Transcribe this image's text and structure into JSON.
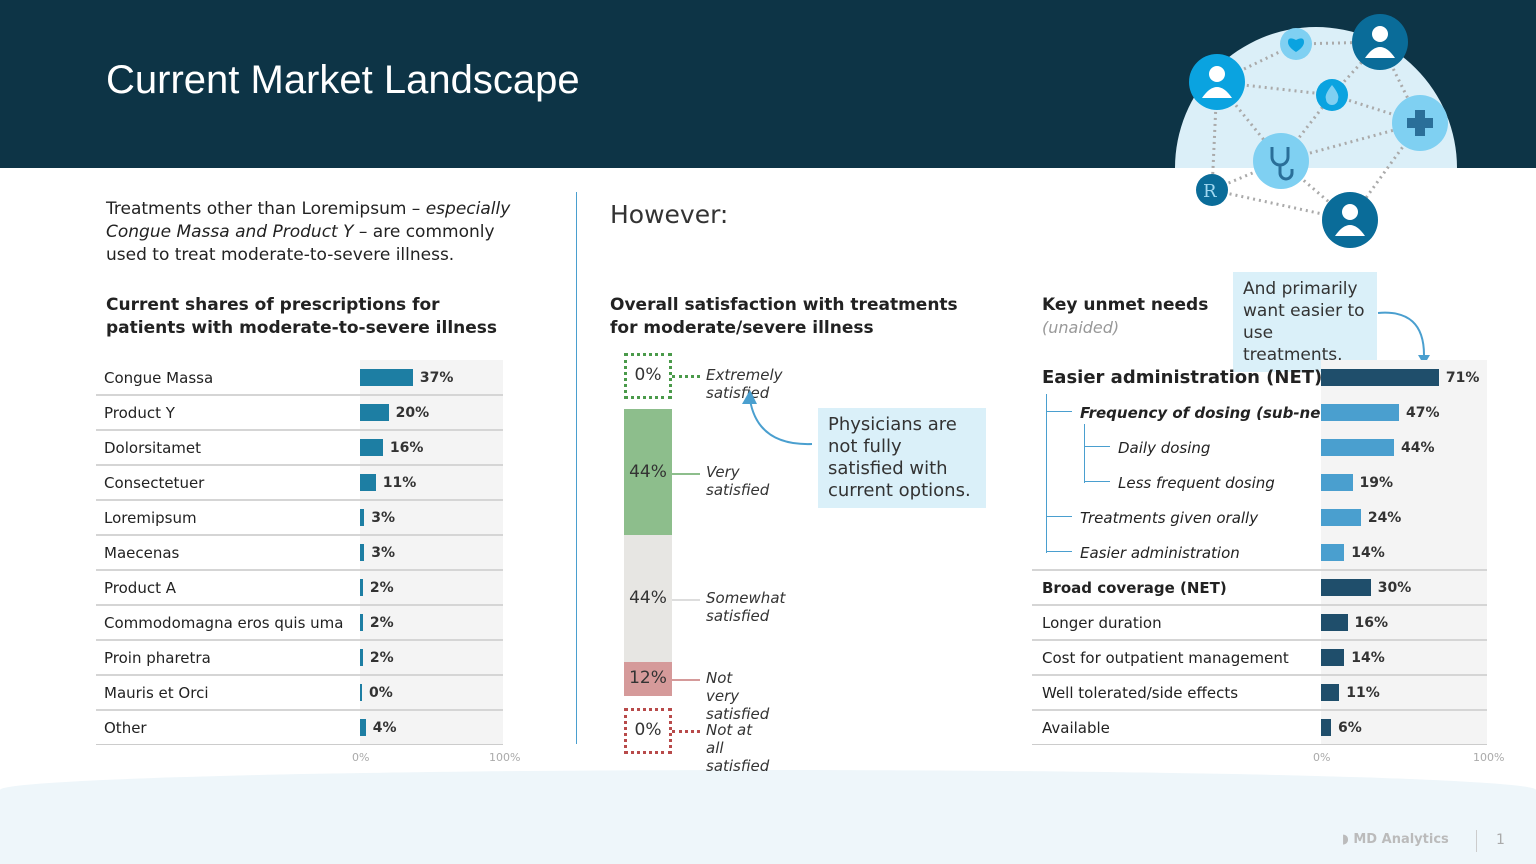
{
  "header": {
    "title": "Current Market Landscape"
  },
  "intro": {
    "text_a": "Treatments other than Loremipsum – ",
    "text_em": "especially Congue Massa and Product Y",
    "text_b": " – are commonly used to treat moderate-to-severe illness."
  },
  "however": "However:",
  "callouts": {
    "satisfaction": "Physicians are not fully satisfied with current options.",
    "unmet": "And primarily want easier to use treatments."
  },
  "footer": {
    "brand": "MD Analytics",
    "page": "1"
  },
  "colors": {
    "header": "#0d3446",
    "bar_left": "#1d7ea3",
    "bar_net": "#1f4e6b",
    "bar_sub": "#4a9fcf",
    "green": "#8dbe8c",
    "gray": "#e7e6e3",
    "red": "#d59a9a"
  },
  "chart_data": [
    {
      "type": "bar",
      "orientation": "horizontal",
      "title": "Current shares of prescriptions for patients with moderate-to-severe illness",
      "xlim": [
        0,
        100
      ],
      "ticks": [
        "0%",
        "100%"
      ],
      "categories": [
        "Congue Massa",
        "Product Y",
        "Dolorsitamet",
        "Consectetuer",
        "Loremipsum",
        "Maecenas",
        "Product A",
        "Commodomagna eros quis uma",
        "Proin pharetra",
        "Mauris et Orci",
        "Other"
      ],
      "values": [
        37,
        20,
        16,
        11,
        3,
        3,
        2,
        2,
        2,
        0,
        4
      ]
    },
    {
      "type": "bar",
      "orientation": "stacked-vertical",
      "title": "Overall satisfaction with treatments for moderate/severe illness",
      "categories": [
        "Extremely satisfied",
        "Very satisfied",
        "Somewhat satisfied",
        "Not very satisfied",
        "Not at all satisfied"
      ],
      "values": [
        0,
        44,
        44,
        12,
        0
      ]
    },
    {
      "type": "bar",
      "orientation": "horizontal",
      "title": "Key unmet needs",
      "subtitle": "(unaided)",
      "xlim": [
        0,
        100
      ],
      "ticks": [
        "0%",
        "100%"
      ],
      "categories": [
        "Easier administration (NET)",
        "Frequency of dosing (sub-net)",
        "Daily dosing",
        "Less frequent dosing",
        "Treatments given orally",
        "Easier administration",
        "Broad coverage (NET)",
        "Longer duration",
        "Cost for outpatient management",
        "Well tolerated/side effects",
        "Available"
      ],
      "levels": [
        "net",
        "sub",
        "sub2",
        "sub2",
        "sub",
        "sub",
        "net2",
        "item",
        "item",
        "item",
        "item"
      ],
      "values": [
        71,
        47,
        44,
        19,
        24,
        14,
        30,
        16,
        14,
        11,
        6
      ]
    }
  ]
}
